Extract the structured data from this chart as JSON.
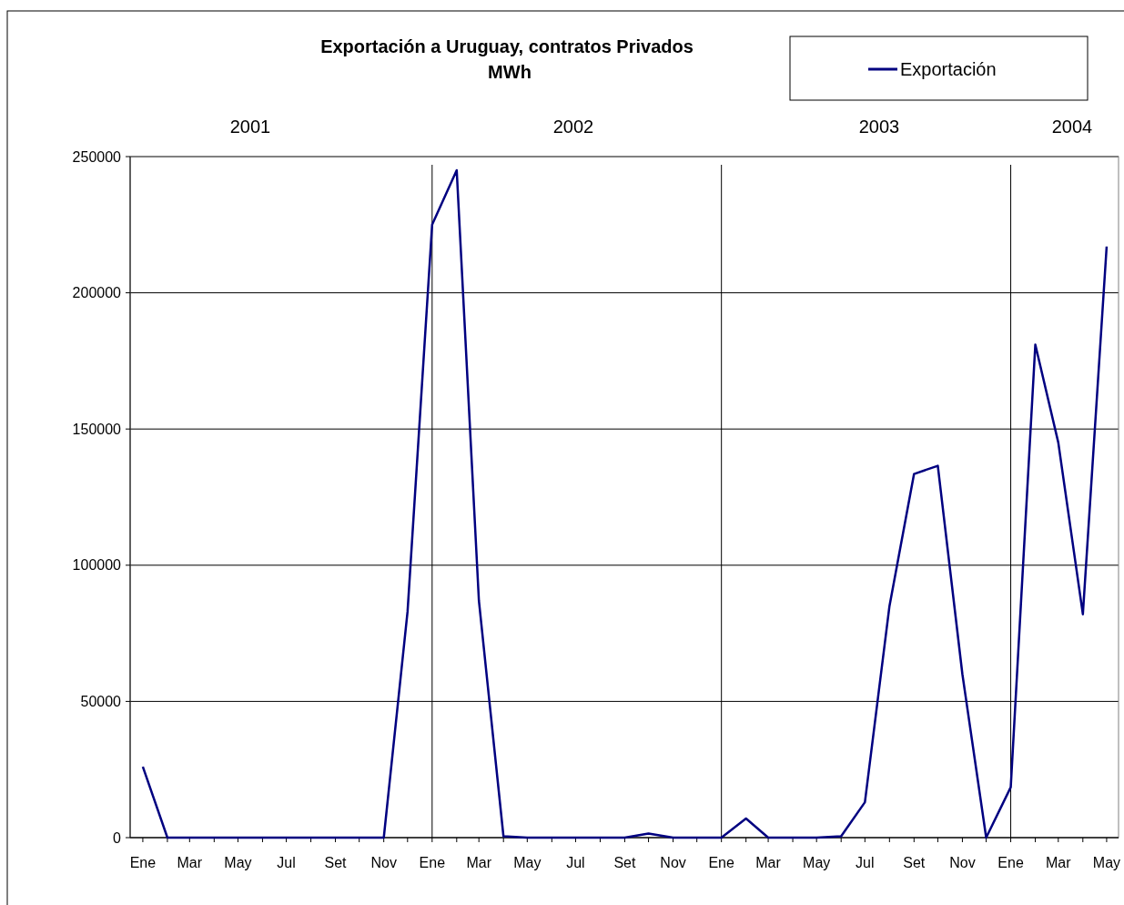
{
  "chart_data": {
    "type": "line",
    "title": "Exportación a Uruguay, contratos Privados",
    "subtitle": "MWh",
    "x": [
      "2001-01",
      "2001-02",
      "2001-03",
      "2001-04",
      "2001-05",
      "2001-06",
      "2001-07",
      "2001-08",
      "2001-09",
      "2001-10",
      "2001-11",
      "2001-12",
      "2002-01",
      "2002-02",
      "2002-03",
      "2002-04",
      "2002-05",
      "2002-06",
      "2002-07",
      "2002-08",
      "2002-09",
      "2002-10",
      "2002-11",
      "2002-12",
      "2003-01",
      "2003-02",
      "2003-03",
      "2003-04",
      "2003-05",
      "2003-06",
      "2003-07",
      "2003-08",
      "2003-09",
      "2003-10",
      "2003-11",
      "2003-12",
      "2004-01",
      "2004-02",
      "2004-03",
      "2004-04",
      "2004-05"
    ],
    "series": [
      {
        "name": "Exportación",
        "color": "#000080",
        "values": [
          26000,
          0,
          0,
          0,
          0,
          0,
          0,
          0,
          0,
          0,
          0,
          83000,
          225000,
          245000,
          87000,
          500,
          0,
          0,
          0,
          0,
          0,
          1500,
          0,
          0,
          0,
          7000,
          0,
          0,
          0,
          500,
          13000,
          85000,
          133500,
          136500,
          60000,
          0,
          18500,
          181000,
          145000,
          82000,
          217000
        ]
      }
    ],
    "xlim": [
      "2000-12-16",
      "2004-05-16"
    ],
    "xticks": [
      {
        "value": "2001-01",
        "label": "Ene"
      },
      {
        "value": "2001-02",
        "label": null
      },
      {
        "value": "2001-03",
        "label": "Mar"
      },
      {
        "value": "2001-04",
        "label": null
      },
      {
        "value": "2001-05",
        "label": "May"
      },
      {
        "value": "2001-06",
        "label": null
      },
      {
        "value": "2001-07",
        "label": "Jul"
      },
      {
        "value": "2001-08",
        "label": null
      },
      {
        "value": "2001-09",
        "label": "Set"
      },
      {
        "value": "2001-10",
        "label": null
      },
      {
        "value": "2001-11",
        "label": "Nov"
      },
      {
        "value": "2001-12",
        "label": null
      },
      {
        "value": "2002-01",
        "label": "Ene"
      },
      {
        "value": "2002-02",
        "label": null
      },
      {
        "value": "2002-03",
        "label": "Mar"
      },
      {
        "value": "2002-04",
        "label": null
      },
      {
        "value": "2002-05",
        "label": "May"
      },
      {
        "value": "2002-06",
        "label": null
      },
      {
        "value": "2002-07",
        "label": "Jul"
      },
      {
        "value": "2002-08",
        "label": null
      },
      {
        "value": "2002-09",
        "label": "Set"
      },
      {
        "value": "2002-10",
        "label": null
      },
      {
        "value": "2002-11",
        "label": "Nov"
      },
      {
        "value": "2002-12",
        "label": null
      },
      {
        "value": "2003-01",
        "label": "Ene"
      },
      {
        "value": "2003-02",
        "label": null
      },
      {
        "value": "2003-03",
        "label": "Mar"
      },
      {
        "value": "2003-04",
        "label": null
      },
      {
        "value": "2003-05",
        "label": "May"
      },
      {
        "value": "2003-06",
        "label": null
      },
      {
        "value": "2003-07",
        "label": "Jul"
      },
      {
        "value": "2003-08",
        "label": null
      },
      {
        "value": "2003-09",
        "label": "Set"
      },
      {
        "value": "2003-10",
        "label": null
      },
      {
        "value": "2003-11",
        "label": "Nov"
      },
      {
        "value": "2003-12",
        "label": null
      },
      {
        "value": "2004-01",
        "label": "Ene"
      },
      {
        "value": "2004-02",
        "label": null
      },
      {
        "value": "2004-03",
        "label": "Mar"
      },
      {
        "value": "2004-04",
        "label": null
      },
      {
        "value": "2004-05",
        "label": "May"
      }
    ],
    "ylim": [
      0,
      250000
    ],
    "yticks": [
      0,
      50000,
      100000,
      150000,
      200000,
      250000
    ],
    "grid": "y",
    "legend": "top right",
    "marker": "none",
    "line_style": "solid",
    "ref_lines": [
      {
        "axis": "x",
        "value": "2002-01"
      },
      {
        "axis": "x",
        "value": "2003-01"
      },
      {
        "axis": "x",
        "value": "2004-01"
      }
    ],
    "annotations": [
      "2001",
      "2002",
      "2003",
      "2004"
    ]
  }
}
